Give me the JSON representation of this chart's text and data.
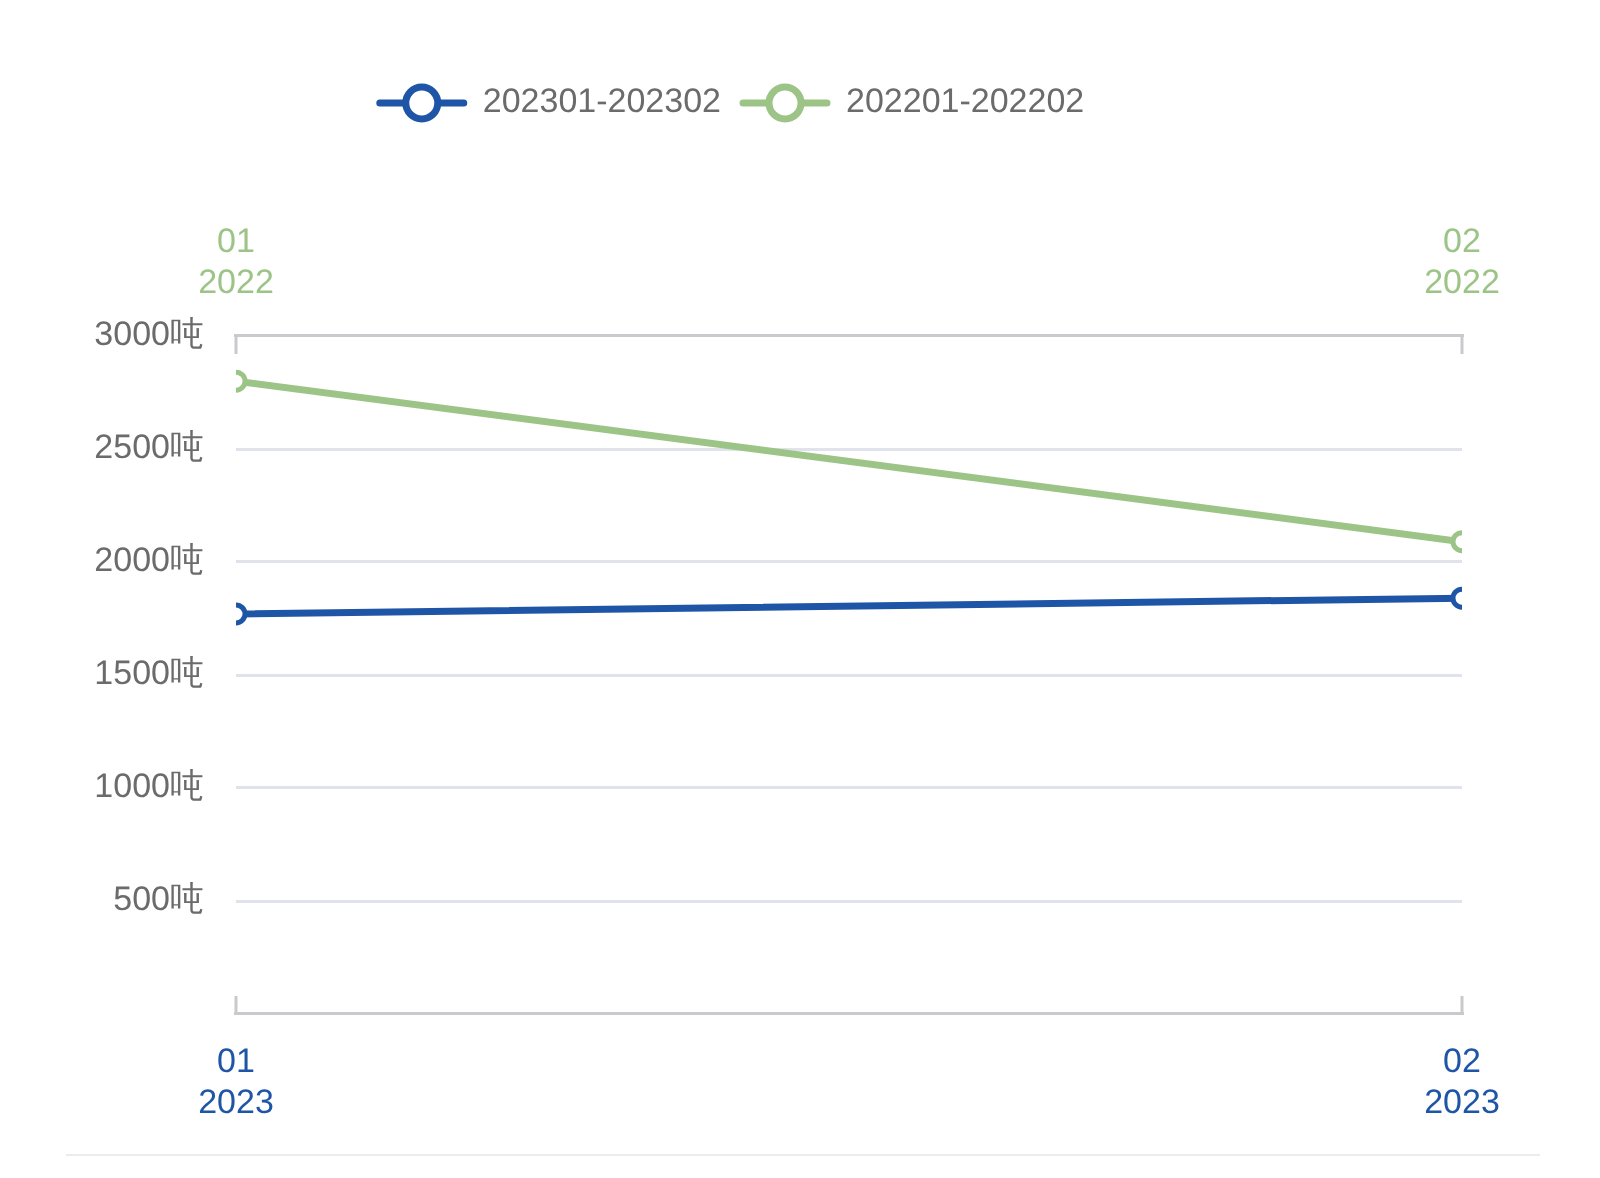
{
  "chart_data": {
    "type": "line",
    "xlim": [
      "2023-01",
      "2023-02"
    ],
    "xticks": [
      {
        "value": "2023-01",
        "label": "01\n2023"
      },
      {
        "value": "2023-02",
        "label": "02\n2023"
      }
    ],
    "x2lim": [
      "2022-01",
      "2022-02"
    ],
    "x2ticks": [
      {
        "value": "2022-01",
        "label": "01\n2022"
      },
      {
        "value": "2022-02",
        "label": "02\n2022"
      }
    ],
    "ylim": [
      0,
      3000
    ],
    "yticks": [
      {
        "value": 0,
        "label": null
      },
      {
        "value": 500,
        "label": "500吨"
      },
      {
        "value": 1000,
        "label": "1000吨"
      },
      {
        "value": 1500,
        "label": "1500吨"
      },
      {
        "value": 2000,
        "label": "2000吨"
      },
      {
        "value": 2500,
        "label": "2500吨"
      },
      {
        "value": 3000,
        "label": "3000吨"
      }
    ],
    "series": [
      {
        "name": "202301-202302",
        "color": "#1f55a6",
        "x": [
          "2023-01",
          "2023-02"
        ],
        "values": [
          1770,
          1840
        ]
      },
      {
        "name": "202201-202202",
        "color": "#9dc487",
        "axis": "x2",
        "x": [
          "2022-01",
          "2022-02"
        ],
        "values": [
          2800,
          2090
        ]
      }
    ],
    "grid": "y",
    "legend": "top",
    "marker": "circle",
    "line_style": "solid"
  }
}
